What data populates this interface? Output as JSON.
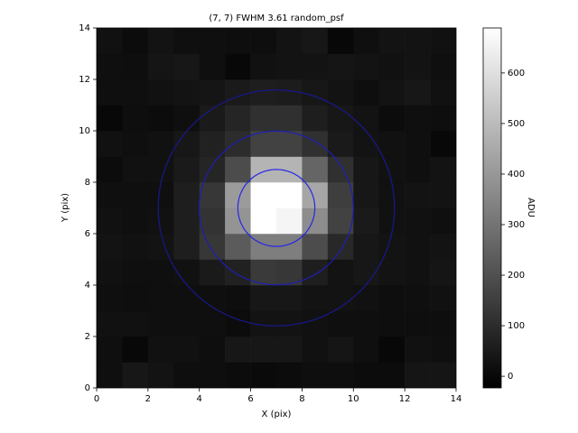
{
  "chart_data": {
    "type": "heatmap",
    "title": "(7, 7)    FWHM 3.61    random_psf",
    "x_label": "X (pix)",
    "y_label": "Y (pix)",
    "colorbar_label": "ADU",
    "xlim": [
      0,
      14
    ],
    "ylim": [
      0,
      14
    ],
    "xticks": [
      0,
      2,
      4,
      6,
      8,
      10,
      12,
      14
    ],
    "yticks": [
      0,
      2,
      4,
      6,
      8,
      10,
      12,
      14
    ],
    "clim": [
      -23,
      689
    ],
    "cticks": [
      0,
      100,
      200,
      300,
      400,
      500,
      600
    ],
    "colormap": [
      "#000000",
      "#ffffff"
    ],
    "values": [
      [
        20,
        40,
        30,
        15,
        15,
        10,
        5,
        10,
        15,
        15,
        10,
        10,
        35,
        35
      ],
      [
        20,
        0,
        25,
        25,
        15,
        40,
        40,
        40,
        25,
        35,
        20,
        0,
        25,
        20
      ],
      [
        25,
        25,
        20,
        20,
        20,
        10,
        30,
        30,
        25,
        20,
        20,
        15,
        15,
        15
      ],
      [
        20,
        15,
        20,
        20,
        20,
        15,
        40,
        40,
        30,
        30,
        25,
        15,
        20,
        25
      ],
      [
        25,
        20,
        20,
        25,
        50,
        70,
        140,
        130,
        60,
        30,
        40,
        30,
        25,
        35
      ],
      [
        30,
        25,
        30,
        60,
        130,
        230,
        330,
        330,
        190,
        90,
        40,
        30,
        25,
        30
      ],
      [
        25,
        20,
        25,
        60,
        120,
        390,
        689,
        660,
        370,
        160,
        50,
        25,
        25,
        20
      ],
      [
        20,
        20,
        20,
        60,
        130,
        410,
        689,
        689,
        440,
        150,
        40,
        25,
        30,
        30
      ],
      [
        10,
        25,
        25,
        50,
        80,
        190,
        480,
        480,
        260,
        110,
        40,
        25,
        20,
        30
      ],
      [
        25,
        20,
        25,
        40,
        70,
        100,
        160,
        160,
        110,
        50,
        30,
        25,
        20,
        0
      ],
      [
        0,
        15,
        10,
        20,
        50,
        80,
        110,
        110,
        60,
        40,
        30,
        10,
        20,
        15
      ],
      [
        20,
        20,
        25,
        30,
        35,
        50,
        60,
        55,
        40,
        30,
        15,
        30,
        40,
        25
      ],
      [
        20,
        15,
        35,
        40,
        20,
        0,
        25,
        30,
        30,
        35,
        30,
        25,
        30,
        20
      ],
      [
        25,
        10,
        30,
        20,
        20,
        15,
        15,
        30,
        40,
        0,
        20,
        30,
        30,
        25
      ]
    ],
    "apertures": [
      {
        "x": 7,
        "y": 7,
        "r": 1.5,
        "color": "#2626e6"
      },
      {
        "x": 7,
        "y": 7,
        "r": 3,
        "color": "#1e1eb4"
      },
      {
        "x": 7,
        "y": 7,
        "r": 4.6,
        "color": "#18188e"
      }
    ]
  }
}
